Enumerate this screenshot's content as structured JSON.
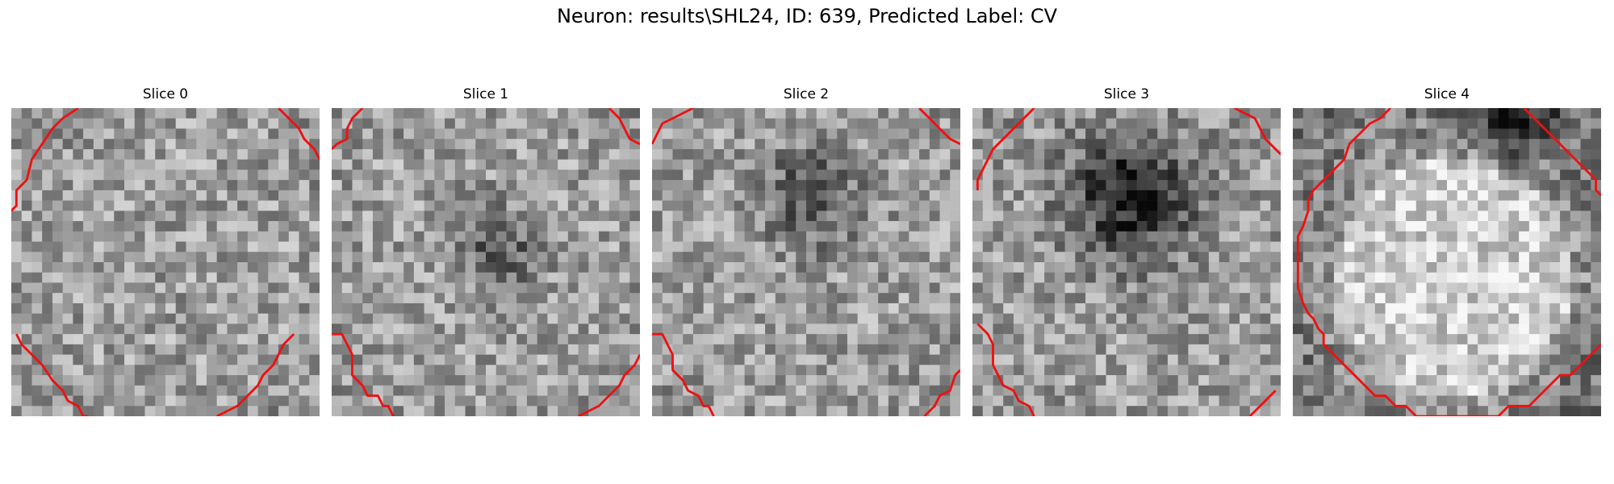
{
  "figure": {
    "title": "Neuron: results\\SHL24, ID: 639, Predicted Label: CV",
    "contour_color": "#ee1111",
    "panels": [
      {
        "title": "Slice 0",
        "dark_spots": [],
        "contours": [
          [
            [
              13,
              0
            ],
            [
              10,
              2
            ],
            [
              8,
              4
            ],
            [
              6,
              7
            ],
            [
              4,
              10
            ],
            [
              3,
              14
            ],
            [
              1,
              16
            ],
            [
              1,
              19
            ],
            [
              0,
              20
            ]
          ],
          [
            [
              1,
              44
            ],
            [
              2,
              46
            ],
            [
              4,
              48
            ],
            [
              6,
              50
            ],
            [
              8,
              53
            ],
            [
              10,
              55
            ],
            [
              11,
              57
            ],
            [
              13,
              58
            ],
            [
              14,
              60
            ],
            [
              15,
              60
            ]
          ],
          [
            [
              40,
              60
            ],
            [
              42,
              59
            ],
            [
              44,
              58
            ],
            [
              46,
              56
            ],
            [
              48,
              54
            ],
            [
              49,
              52
            ],
            [
              51,
              50
            ],
            [
              52,
              48
            ],
            [
              53,
              46
            ],
            [
              55,
              44
            ]
          ],
          [
            [
              52,
              0
            ],
            [
              54,
              2
            ],
            [
              56,
              4
            ],
            [
              57,
              6
            ],
            [
              59,
              8
            ],
            [
              60,
              10
            ]
          ]
        ]
      },
      {
        "title": "Slice 1",
        "dark_spots": [
          {
            "x": 34,
            "y": 30,
            "r": 5,
            "a": 0.22
          },
          {
            "x": 30,
            "y": 23,
            "r": 5,
            "a": 0.15
          }
        ],
        "contours": [
          [
            [
              6,
              0
            ],
            [
              4,
              2
            ],
            [
              3,
              4
            ],
            [
              3,
              6
            ],
            [
              1,
              7
            ],
            [
              0,
              8
            ]
          ],
          [
            [
              0,
              44
            ],
            [
              2,
              44
            ],
            [
              3,
              46
            ],
            [
              4,
              48
            ],
            [
              4,
              52
            ],
            [
              6,
              54
            ],
            [
              7,
              56
            ],
            [
              9,
              56
            ],
            [
              10,
              58
            ],
            [
              11,
              58
            ],
            [
              12,
              60
            ]
          ],
          [
            [
              48,
              60
            ],
            [
              50,
              59
            ],
            [
              52,
              58
            ],
            [
              54,
              56
            ],
            [
              56,
              54
            ],
            [
              57,
              52
            ],
            [
              59,
              50
            ],
            [
              60,
              48
            ]
          ],
          [
            [
              54,
              0
            ],
            [
              56,
              2
            ],
            [
              57,
              4
            ],
            [
              58,
              6
            ],
            [
              60,
              7
            ]
          ]
        ]
      },
      {
        "title": "Slice 2",
        "dark_spots": [
          {
            "x": 31,
            "y": 17,
            "r": 7,
            "a": 0.3
          }
        ],
        "contours": [
          [
            [
              8,
              0
            ],
            [
              6,
              1
            ],
            [
              4,
              2
            ],
            [
              2,
              3
            ],
            [
              1,
              5
            ],
            [
              0,
              7
            ]
          ],
          [
            [
              0,
              44
            ],
            [
              2,
              44
            ],
            [
              3,
              46
            ],
            [
              4,
              48
            ],
            [
              4,
              51
            ],
            [
              6,
              53
            ],
            [
              7,
              55
            ],
            [
              9,
              56
            ],
            [
              10,
              58
            ],
            [
              11,
              58
            ],
            [
              12,
              60
            ]
          ],
          [
            [
              53,
              60
            ],
            [
              55,
              58
            ],
            [
              56,
              56
            ],
            [
              58,
              55
            ],
            [
              59,
              52
            ],
            [
              60,
              51
            ]
          ],
          [
            [
              52,
              0
            ],
            [
              54,
              2
            ],
            [
              56,
              4
            ],
            [
              58,
              6
            ],
            [
              60,
              7
            ]
          ]
        ]
      },
      {
        "title": "Slice 3",
        "dark_spots": [
          {
            "x": 31,
            "y": 17,
            "r": 9,
            "a": 0.5
          }
        ],
        "contours": [
          [
            [
              12,
              0
            ],
            [
              10,
              2
            ],
            [
              8,
              4
            ],
            [
              6,
              6
            ],
            [
              4,
              8
            ],
            [
              3,
              10
            ],
            [
              2,
              12
            ],
            [
              1,
              14
            ],
            [
              1,
              16
            ]
          ],
          [
            [
              1,
              42
            ],
            [
              3,
              44
            ],
            [
              4,
              46
            ],
            [
              4,
              50
            ],
            [
              5,
              52
            ],
            [
              6,
              54
            ],
            [
              8,
              55
            ],
            [
              9,
              57
            ],
            [
              11,
              58
            ],
            [
              12,
              60
            ]
          ],
          [
            [
              54,
              60
            ],
            [
              56,
              58
            ],
            [
              58,
              56
            ],
            [
              59,
              55
            ]
          ],
          [
            [
              51,
              0
            ],
            [
              53,
              1
            ],
            [
              55,
              2
            ],
            [
              56,
              4
            ],
            [
              57,
              6
            ],
            [
              59,
              8
            ],
            [
              60,
              9
            ]
          ]
        ]
      },
      {
        "title": "Slice 4",
        "dark_spots": [
          {
            "x": 43,
            "y": 1,
            "r": 6,
            "a": 0.4
          }
        ],
        "bright_spots": [
          {
            "x": 31,
            "y": 33,
            "r": 23,
            "a": 0.38
          }
        ],
        "contours": [
          [
            [
              19,
              0
            ],
            [
              17,
              2
            ],
            [
              15,
              3
            ],
            [
              13,
              5
            ],
            [
              11,
              7
            ],
            [
              10,
              10
            ],
            [
              8,
              12
            ],
            [
              6,
              14
            ],
            [
              4,
              16
            ],
            [
              3,
              18
            ],
            [
              3,
              20
            ],
            [
              2,
              23
            ],
            [
              1,
              25
            ],
            [
              1,
              28
            ],
            [
              1,
              32
            ],
            [
              1,
              35
            ],
            [
              2,
              38
            ],
            [
              3,
              40
            ],
            [
              4,
              41
            ],
            [
              5,
              43
            ],
            [
              6,
              44
            ],
            [
              6,
              46
            ],
            [
              8,
              48
            ],
            [
              10,
              50
            ],
            [
              12,
              52
            ],
            [
              14,
              54
            ],
            [
              16,
              56
            ],
            [
              18,
              56
            ],
            [
              20,
              58
            ],
            [
              22,
              58
            ],
            [
              24,
              60
            ],
            [
              26,
              60
            ],
            [
              28,
              60
            ],
            [
              30,
              60
            ],
            [
              32,
              60
            ],
            [
              34,
              60
            ],
            [
              36,
              60
            ],
            [
              38,
              60
            ],
            [
              40,
              60
            ],
            [
              42,
              58
            ],
            [
              44,
              58
            ],
            [
              46,
              58
            ],
            [
              48,
              56
            ],
            [
              50,
              54
            ],
            [
              52,
              52
            ],
            [
              54,
              52
            ],
            [
              56,
              50
            ],
            [
              58,
              48
            ],
            [
              60,
              46
            ]
          ],
          [
            [
              45,
              0
            ],
            [
              47,
              2
            ],
            [
              49,
              4
            ],
            [
              51,
              6
            ],
            [
              53,
              8
            ],
            [
              55,
              10
            ],
            [
              57,
              12
            ],
            [
              59,
              14
            ],
            [
              59,
              16
            ],
            [
              60,
              17
            ]
          ]
        ]
      }
    ]
  }
}
